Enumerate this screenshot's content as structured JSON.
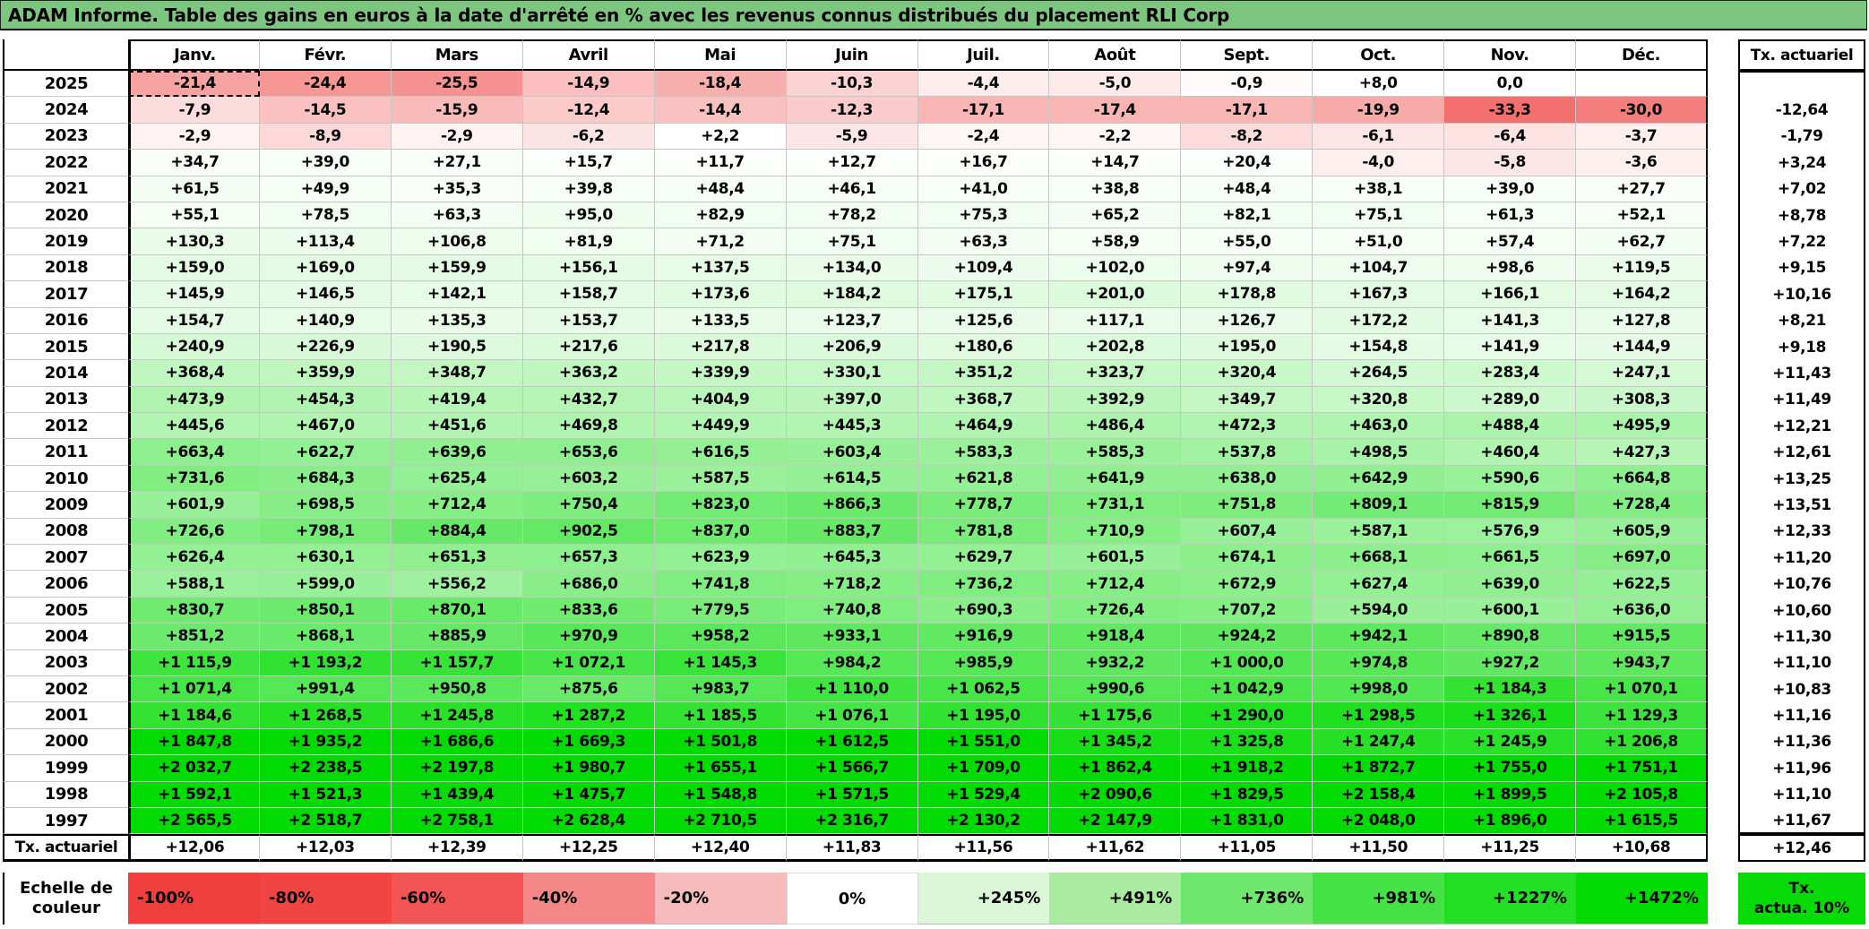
{
  "title": "ADAM Informe. Table des gains en euros à la date d'arrêté en % avec les revenus connus distribués du placement RLI Corp",
  "months": [
    "Janv.",
    "Févr.",
    "Mars",
    "Avril",
    "Mai",
    "Juin",
    "Juil.",
    "Août",
    "Sept.",
    "Oct.",
    "Nov.",
    "Déc."
  ],
  "tx_header": "Tx. actuariel",
  "rows": [
    {
      "year": "2025",
      "cells": [
        "-21,4",
        "-24,4",
        "-25,5",
        "-14,9",
        "-18,4",
        "-10,3",
        "-4,4",
        "-5,0",
        "-0,9",
        "+8,0",
        "0,0",
        ""
      ],
      "tx": ""
    },
    {
      "year": "2024",
      "cells": [
        "-7,9",
        "-14,5",
        "-15,9",
        "-12,4",
        "-14,4",
        "-12,3",
        "-17,1",
        "-17,4",
        "-17,1",
        "-19,9",
        "-33,3",
        "-30,0"
      ],
      "tx": "-12,64"
    },
    {
      "year": "2023",
      "cells": [
        "-2,9",
        "-8,9",
        "-2,9",
        "-6,2",
        "+2,2",
        "-5,9",
        "-2,4",
        "-2,2",
        "-8,2",
        "-6,1",
        "-6,4",
        "-3,7"
      ],
      "tx": "-1,79"
    },
    {
      "year": "2022",
      "cells": [
        "+34,7",
        "+39,0",
        "+27,1",
        "+15,7",
        "+11,7",
        "+12,7",
        "+16,7",
        "+14,7",
        "+20,4",
        "-4,0",
        "-5,8",
        "-3,6"
      ],
      "tx": "+3,24"
    },
    {
      "year": "2021",
      "cells": [
        "+61,5",
        "+49,9",
        "+35,3",
        "+39,8",
        "+48,4",
        "+46,1",
        "+41,0",
        "+38,8",
        "+48,4",
        "+38,1",
        "+39,0",
        "+27,7"
      ],
      "tx": "+7,02"
    },
    {
      "year": "2020",
      "cells": [
        "+55,1",
        "+78,5",
        "+63,3",
        "+95,0",
        "+82,9",
        "+78,2",
        "+75,3",
        "+65,2",
        "+82,1",
        "+75,1",
        "+61,3",
        "+52,1"
      ],
      "tx": "+8,78"
    },
    {
      "year": "2019",
      "cells": [
        "+130,3",
        "+113,4",
        "+106,8",
        "+81,9",
        "+71,2",
        "+75,1",
        "+63,3",
        "+58,9",
        "+55,0",
        "+51,0",
        "+57,4",
        "+62,7"
      ],
      "tx": "+7,22"
    },
    {
      "year": "2018",
      "cells": [
        "+159,0",
        "+169,0",
        "+159,9",
        "+156,1",
        "+137,5",
        "+134,0",
        "+109,4",
        "+102,0",
        "+97,4",
        "+104,7",
        "+98,6",
        "+119,5"
      ],
      "tx": "+9,15"
    },
    {
      "year": "2017",
      "cells": [
        "+145,9",
        "+146,5",
        "+142,1",
        "+158,7",
        "+173,6",
        "+184,2",
        "+175,1",
        "+201,0",
        "+178,8",
        "+167,3",
        "+166,1",
        "+164,2"
      ],
      "tx": "+10,16"
    },
    {
      "year": "2016",
      "cells": [
        "+154,7",
        "+140,9",
        "+135,3",
        "+153,7",
        "+133,5",
        "+123,7",
        "+125,6",
        "+117,1",
        "+126,7",
        "+172,2",
        "+141,3",
        "+127,8"
      ],
      "tx": "+8,21"
    },
    {
      "year": "2015",
      "cells": [
        "+240,9",
        "+226,9",
        "+190,5",
        "+217,6",
        "+217,8",
        "+206,9",
        "+180,6",
        "+202,8",
        "+195,0",
        "+154,8",
        "+141,9",
        "+144,9"
      ],
      "tx": "+9,18"
    },
    {
      "year": "2014",
      "cells": [
        "+368,4",
        "+359,9",
        "+348,7",
        "+363,2",
        "+339,9",
        "+330,1",
        "+351,2",
        "+323,7",
        "+320,4",
        "+264,5",
        "+283,4",
        "+247,1"
      ],
      "tx": "+11,43"
    },
    {
      "year": "2013",
      "cells": [
        "+473,9",
        "+454,3",
        "+419,4",
        "+432,7",
        "+404,9",
        "+397,0",
        "+368,7",
        "+392,9",
        "+349,7",
        "+320,8",
        "+289,0",
        "+308,3"
      ],
      "tx": "+11,49"
    },
    {
      "year": "2012",
      "cells": [
        "+445,6",
        "+467,0",
        "+451,6",
        "+469,8",
        "+449,9",
        "+445,3",
        "+464,9",
        "+486,4",
        "+472,3",
        "+463,0",
        "+488,4",
        "+495,9"
      ],
      "tx": "+12,21"
    },
    {
      "year": "2011",
      "cells": [
        "+663,4",
        "+622,7",
        "+639,6",
        "+653,6",
        "+616,5",
        "+603,4",
        "+583,3",
        "+585,3",
        "+537,8",
        "+498,5",
        "+460,4",
        "+427,3"
      ],
      "tx": "+12,61"
    },
    {
      "year": "2010",
      "cells": [
        "+731,6",
        "+684,3",
        "+625,4",
        "+603,2",
        "+587,5",
        "+614,5",
        "+621,8",
        "+641,9",
        "+638,0",
        "+642,9",
        "+590,6",
        "+664,8"
      ],
      "tx": "+13,25"
    },
    {
      "year": "2009",
      "cells": [
        "+601,9",
        "+698,5",
        "+712,4",
        "+750,4",
        "+823,0",
        "+866,3",
        "+778,7",
        "+731,1",
        "+751,8",
        "+809,1",
        "+815,9",
        "+728,4"
      ],
      "tx": "+13,51"
    },
    {
      "year": "2008",
      "cells": [
        "+726,6",
        "+798,1",
        "+884,4",
        "+902,5",
        "+837,0",
        "+883,7",
        "+781,8",
        "+710,9",
        "+607,4",
        "+587,1",
        "+576,9",
        "+605,9"
      ],
      "tx": "+12,33"
    },
    {
      "year": "2007",
      "cells": [
        "+626,4",
        "+630,1",
        "+651,3",
        "+657,3",
        "+623,9",
        "+645,3",
        "+629,7",
        "+601,5",
        "+674,1",
        "+668,1",
        "+661,5",
        "+697,0"
      ],
      "tx": "+11,20"
    },
    {
      "year": "2006",
      "cells": [
        "+588,1",
        "+599,0",
        "+556,2",
        "+686,0",
        "+741,8",
        "+718,2",
        "+736,2",
        "+712,4",
        "+672,9",
        "+627,4",
        "+639,0",
        "+622,5"
      ],
      "tx": "+10,76"
    },
    {
      "year": "2005",
      "cells": [
        "+830,7",
        "+850,1",
        "+870,1",
        "+833,6",
        "+779,5",
        "+740,8",
        "+690,3",
        "+726,4",
        "+707,2",
        "+594,0",
        "+600,1",
        "+636,0"
      ],
      "tx": "+10,60"
    },
    {
      "year": "2004",
      "cells": [
        "+851,2",
        "+868,1",
        "+885,9",
        "+970,9",
        "+958,2",
        "+933,1",
        "+916,9",
        "+918,4",
        "+924,2",
        "+942,1",
        "+890,8",
        "+915,5"
      ],
      "tx": "+11,30"
    },
    {
      "year": "2003",
      "cells": [
        "+1 115,9",
        "+1 193,2",
        "+1 157,7",
        "+1 072,1",
        "+1 145,3",
        "+984,2",
        "+985,9",
        "+932,2",
        "+1 000,0",
        "+974,8",
        "+927,2",
        "+943,7"
      ],
      "tx": "+11,10"
    },
    {
      "year": "2002",
      "cells": [
        "+1 071,4",
        "+991,4",
        "+950,8",
        "+875,6",
        "+983,7",
        "+1 110,0",
        "+1 062,5",
        "+990,6",
        "+1 042,9",
        "+998,0",
        "+1 184,3",
        "+1 070,1"
      ],
      "tx": "+10,83"
    },
    {
      "year": "2001",
      "cells": [
        "+1 184,6",
        "+1 268,5",
        "+1 245,8",
        "+1 287,2",
        "+1 185,5",
        "+1 076,1",
        "+1 195,0",
        "+1 175,6",
        "+1 290,0",
        "+1 298,5",
        "+1 326,1",
        "+1 129,3"
      ],
      "tx": "+11,16"
    },
    {
      "year": "2000",
      "cells": [
        "+1 847,8",
        "+1 935,2",
        "+1 686,6",
        "+1 669,3",
        "+1 501,8",
        "+1 612,5",
        "+1 551,0",
        "+1 345,2",
        "+1 325,8",
        "+1 247,4",
        "+1 245,9",
        "+1 206,8"
      ],
      "tx": "+11,36"
    },
    {
      "year": "1999",
      "cells": [
        "+2 032,7",
        "+2 238,5",
        "+2 197,8",
        "+1 980,7",
        "+1 655,1",
        "+1 566,7",
        "+1 709,0",
        "+1 862,4",
        "+1 918,2",
        "+1 872,7",
        "+1 755,0",
        "+1 751,1"
      ],
      "tx": "+11,96"
    },
    {
      "year": "1998",
      "cells": [
        "+1 592,1",
        "+1 521,3",
        "+1 439,4",
        "+1 475,7",
        "+1 548,8",
        "+1 571,5",
        "+1 529,4",
        "+2 090,6",
        "+1 829,5",
        "+2 158,4",
        "+1 899,5",
        "+2 105,8"
      ],
      "tx": "+11,10"
    },
    {
      "year": "1997",
      "cells": [
        "+2 565,5",
        "+2 518,7",
        "+2 758,1",
        "+2 628,4",
        "+2 710,5",
        "+2 316,7",
        "+2 130,2",
        "+2 147,9",
        "+1 831,0",
        "+2 048,0",
        "+1 896,0",
        "+1 615,5"
      ],
      "tx": "+11,67"
    }
  ],
  "summary": {
    "label": "Tx. actuariel",
    "cells": [
      "+12,06",
      "+12,03",
      "+12,39",
      "+12,25",
      "+12,40",
      "+11,83",
      "+11,56",
      "+11,62",
      "+11,05",
      "+11,50",
      "+11,25",
      "+10,68"
    ],
    "tx": "+12,46"
  },
  "selection": {
    "row": "2025",
    "col": "Janv."
  },
  "legend": {
    "label_line1": "Echelle de",
    "label_line2": "couleur",
    "cells": [
      {
        "label": "-100%",
        "color": "#EF3E3C",
        "align": "left"
      },
      {
        "label": "-80%",
        "color": "#F04543",
        "align": "left"
      },
      {
        "label": "-60%",
        "color": "#F25553",
        "align": "left"
      },
      {
        "label": "-40%",
        "color": "#F58887",
        "align": "left"
      },
      {
        "label": "-20%",
        "color": "#F6BBBA",
        "align": "left"
      },
      {
        "label": "0%",
        "color": "#FFFFFF",
        "align": "center"
      },
      {
        "label": "+245%",
        "color": "#DCF6D8",
        "align": "right"
      },
      {
        "label": "+491%",
        "color": "#A9ECA0",
        "align": "right"
      },
      {
        "label": "+736%",
        "color": "#6FE76C",
        "align": "right"
      },
      {
        "label": "+981%",
        "color": "#45E245",
        "align": "right"
      },
      {
        "label": "+1227%",
        "color": "#23DF23",
        "align": "right"
      },
      {
        "label": "+1472%",
        "color": "#02DB02",
        "align": "right"
      }
    ],
    "tx_box": {
      "line1": "Tx.",
      "line2": "actua. 10%",
      "color": "#07DB07"
    }
  },
  "colors": {
    "title_bg": "#7DC67F",
    "grid_line": "#C6C6C6",
    "border": "#000000",
    "neg_end": "#EF3E3C",
    "pos_end": "#02DB02",
    "neg_range": 45,
    "pos_range": 1472
  }
}
